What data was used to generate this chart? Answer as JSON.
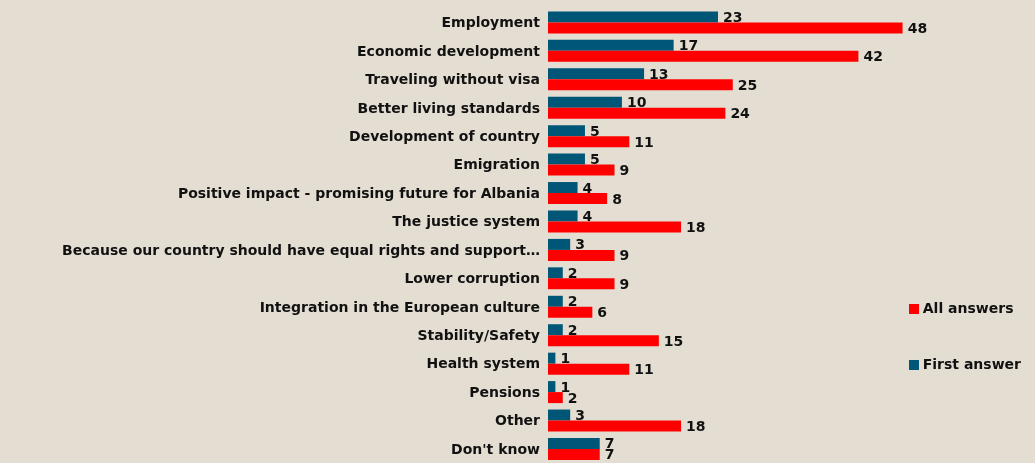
{
  "chart_data": {
    "type": "bar",
    "orientation": "horizontal",
    "categories": [
      "Employment",
      "Economic development",
      "Traveling without visa",
      "Better living standards",
      "Development of country",
      "Emigration",
      "Positive impact - promising future for Albania",
      "The justice system",
      "Because our country should have equal rights and support…",
      "Lower corruption",
      "Integration in the European culture",
      "Stability/Safety",
      "Health system",
      "Pensions",
      "Other",
      "Don't know"
    ],
    "series": [
      {
        "name": "First answer",
        "color": "#005677",
        "values": [
          23,
          17,
          13,
          10,
          5,
          5,
          4,
          4,
          3,
          2,
          2,
          2,
          1,
          1,
          3,
          7
        ]
      },
      {
        "name": "All answers",
        "color": "#ff0000",
        "values": [
          48,
          42,
          25,
          24,
          11,
          9,
          8,
          18,
          9,
          9,
          6,
          15,
          11,
          2,
          18,
          7
        ]
      }
    ],
    "data_labels": true,
    "legend": "right",
    "grid": false
  }
}
